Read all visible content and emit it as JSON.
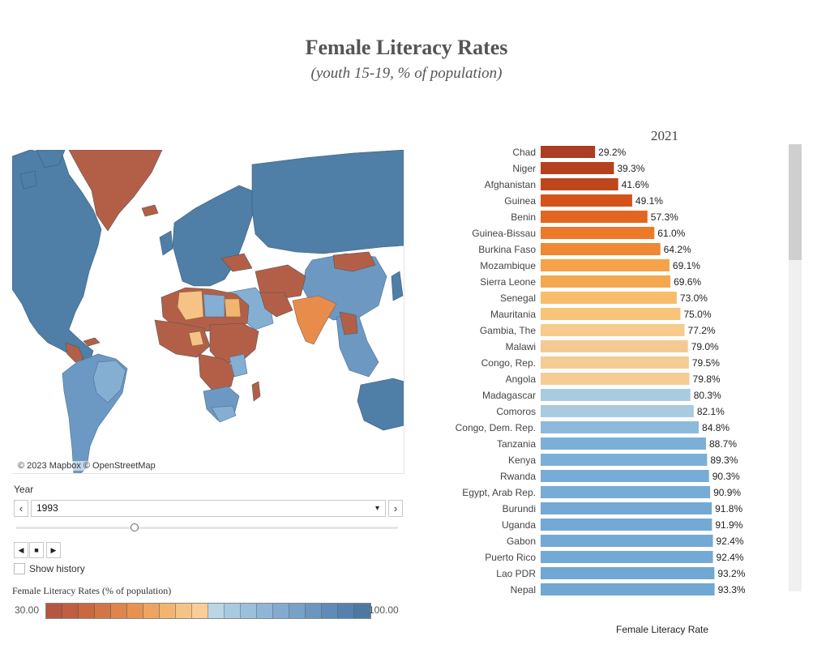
{
  "title": "Female Literacy Rates",
  "subtitle": "(youth 15-19, % of population)",
  "map": {
    "credit": "© 2023 Mapbox  © OpenStreetMap"
  },
  "controls": {
    "year_label": "Year",
    "year_value": "1993",
    "prev_icon": "‹",
    "next_icon": "›",
    "dropdown_icon": "▾",
    "slider_value_fraction": 0.31,
    "back_icon": "◀",
    "stop_icon": "■",
    "forward_icon": "▶",
    "show_history_label": "Show history",
    "show_history_checked": false
  },
  "legend": {
    "title": "Female Literacy Rates (% of population)",
    "min_label": "30.00",
    "max_label": "100.00",
    "colors": [
      "#b5563f",
      "#bf5e40",
      "#c96942",
      "#d27645",
      "#dd854b",
      "#e69352",
      "#eda45e",
      "#f2b46e",
      "#f6c386",
      "#f8cd97",
      "#b9d5e6",
      "#a8cae0",
      "#9bc0dc",
      "#8fb6d6",
      "#83abcf",
      "#78a1c7",
      "#6b96bf",
      "#608bb6",
      "#5581ac",
      "#4c78a2"
    ]
  },
  "chart_data": {
    "type": "bar",
    "orientation": "horizontal",
    "title": "2021",
    "xlabel": "Female Literacy Rate",
    "ylabel": "",
    "xlim": [
      0,
      100
    ],
    "categories": [
      "Chad",
      "Niger",
      "Afghanistan",
      "Guinea",
      "Benin",
      "Guinea-Bissau",
      "Burkina Faso",
      "Mozambique",
      "Sierra Leone",
      "Senegal",
      "Mauritania",
      "Gambia, The",
      "Malawi",
      "Congo, Rep.",
      "Angola",
      "Madagascar",
      "Comoros",
      "Congo, Dem. Rep.",
      "Tanzania",
      "Kenya",
      "Rwanda",
      "Egypt, Arab Rep.",
      "Burundi",
      "Uganda",
      "Gabon",
      "Puerto Rico",
      "Lao PDR",
      "Nepal"
    ],
    "values": [
      29.2,
      39.3,
      41.6,
      49.1,
      57.3,
      61.0,
      64.2,
      69.1,
      69.6,
      73.0,
      75.0,
      77.2,
      79.0,
      79.5,
      79.8,
      80.3,
      82.1,
      84.8,
      88.7,
      89.3,
      90.3,
      90.9,
      91.8,
      91.9,
      92.4,
      92.4,
      93.2,
      93.3
    ],
    "value_labels": [
      "29.2%",
      "39.3%",
      "41.6%",
      "49.1%",
      "57.3%",
      "61.0%",
      "64.2%",
      "69.1%",
      "69.6%",
      "73.0%",
      "75.0%",
      "77.2%",
      "79.0%",
      "79.5%",
      "79.8%",
      "80.3%",
      "82.1%",
      "84.8%",
      "88.7%",
      "89.3%",
      "90.3%",
      "90.9%",
      "91.8%",
      "91.9%",
      "92.4%",
      "92.4%",
      "93.2%",
      "93.3%"
    ],
    "colors": [
      "#aa3d23",
      "#b4421f",
      "#bd461d",
      "#d3531b",
      "#e2661f",
      "#ec7a29",
      "#ef8733",
      "#f5a24b",
      "#f6a851",
      "#f8bd6c",
      "#f8c479",
      "#f7ca8e",
      "#f5ca92",
      "#f4cc94",
      "#f4cc94",
      "#a9cbe0",
      "#a9cbe0",
      "#8dbadb",
      "#7bafd8",
      "#7bafd8",
      "#77acd6",
      "#77acd6",
      "#73a9d4",
      "#73a9d4",
      "#73a9d4",
      "#73a9d4",
      "#70a7d3",
      "#70a7d3"
    ]
  }
}
